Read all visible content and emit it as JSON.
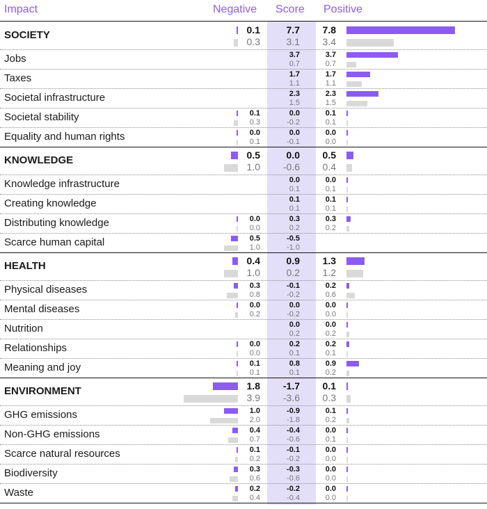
{
  "headers": {
    "impact": "Impact",
    "negative": "Negative",
    "score": "Score",
    "positive": "Positive"
  },
  "chart_data": {
    "type": "table",
    "columns": [
      "Negative",
      "Score",
      "Positive"
    ],
    "series_note": "Each cell shows two values: first (purple bar) and second (grey bar)",
    "rows": [
      {
        "label": "SOCIETY",
        "section": true,
        "neg": [
          "0.1",
          "0.3"
        ],
        "score": [
          "7.7",
          "3.1"
        ],
        "pos": [
          "7.8",
          "3.4"
        ]
      },
      {
        "label": "Jobs",
        "section": false,
        "neg": null,
        "score": [
          "3.7",
          "0.7"
        ],
        "pos": [
          "3.7",
          "0.7"
        ]
      },
      {
        "label": "Taxes",
        "section": false,
        "neg": null,
        "score": [
          "1.7",
          "1.1"
        ],
        "pos": [
          "1.7",
          "1.1"
        ]
      },
      {
        "label": "Societal infrastructure",
        "section": false,
        "neg": null,
        "score": [
          "2.3",
          "1.5"
        ],
        "pos": [
          "2.3",
          "1.5"
        ]
      },
      {
        "label": "Societal stability",
        "section": false,
        "neg": [
          "0.1",
          "0.3"
        ],
        "score": [
          "0.0",
          "-0.2"
        ],
        "pos": [
          "0.1",
          "0.1"
        ]
      },
      {
        "label": "Equality and human rights",
        "section": false,
        "neg": [
          "0.0",
          "0.1"
        ],
        "score": [
          "0.0",
          "-0.1"
        ],
        "pos": [
          "0.0",
          "0.0"
        ]
      },
      {
        "label": "KNOWLEDGE",
        "section": true,
        "neg": [
          "0.5",
          "1.0"
        ],
        "score": [
          "0.0",
          "-0.6"
        ],
        "pos": [
          "0.5",
          "0.4"
        ]
      },
      {
        "label": "Knowledge infrastructure",
        "section": false,
        "neg": null,
        "score": [
          "0.0",
          "0.1"
        ],
        "pos": [
          "0.0",
          "0.1"
        ]
      },
      {
        "label": "Creating knowledge",
        "section": false,
        "neg": null,
        "score": [
          "0.1",
          "0.1"
        ],
        "pos": [
          "0.1",
          "0.1"
        ]
      },
      {
        "label": "Distributing knowledge",
        "section": false,
        "neg": [
          "0.0",
          "0.0"
        ],
        "score": [
          "0.3",
          "0.2"
        ],
        "pos": [
          "0.3",
          "0.2"
        ]
      },
      {
        "label": "Scarce human capital",
        "section": false,
        "neg": [
          "0.5",
          "1.0"
        ],
        "score": [
          "-0.5",
          "-1.0"
        ],
        "pos": null
      },
      {
        "label": "HEALTH",
        "section": true,
        "neg": [
          "0.4",
          "1.0"
        ],
        "score": [
          "0.9",
          "0.2"
        ],
        "pos": [
          "1.3",
          "1.2"
        ]
      },
      {
        "label": "Physical diseases",
        "section": false,
        "neg": [
          "0.3",
          "0.8"
        ],
        "score": [
          "-0.1",
          "-0.2"
        ],
        "pos": [
          "0.2",
          "0.6"
        ]
      },
      {
        "label": "Mental diseases",
        "section": false,
        "neg": [
          "0.0",
          "0.2"
        ],
        "score": [
          "0.0",
          "-0.2"
        ],
        "pos": [
          "0.0",
          "0.0"
        ]
      },
      {
        "label": "Nutrition",
        "section": false,
        "neg": null,
        "score": [
          "0.0",
          "0.2"
        ],
        "pos": [
          "0.0",
          "0.2"
        ]
      },
      {
        "label": "Relationships",
        "section": false,
        "neg": [
          "0.0",
          "0.0"
        ],
        "score": [
          "0.2",
          "0.1"
        ],
        "pos": [
          "0.2",
          "0.1"
        ]
      },
      {
        "label": "Meaning and joy",
        "section": false,
        "neg": [
          "0.1",
          "0.1"
        ],
        "score": [
          "0.8",
          "0.1"
        ],
        "pos": [
          "0.9",
          "0.2"
        ]
      },
      {
        "label": "ENVIRONMENT",
        "section": true,
        "neg": [
          "1.8",
          "3.9"
        ],
        "score": [
          "-1.7",
          "-3.6"
        ],
        "pos": [
          "0.1",
          "0.3"
        ]
      },
      {
        "label": "GHG emissions",
        "section": false,
        "neg": [
          "1.0",
          "2.0"
        ],
        "score": [
          "-0.9",
          "-1.8"
        ],
        "pos": [
          "0.1",
          "0.2"
        ]
      },
      {
        "label": "Non-GHG emissions",
        "section": false,
        "neg": [
          "0.4",
          "0.7"
        ],
        "score": [
          "-0.4",
          "-0.6"
        ],
        "pos": [
          "0.0",
          "0.1"
        ]
      },
      {
        "label": "Scarce natural resources",
        "section": false,
        "neg": [
          "0.1",
          "0.2"
        ],
        "score": [
          "-0.1",
          "-0.2"
        ],
        "pos": [
          "0.0",
          "0.0"
        ]
      },
      {
        "label": "Biodiversity",
        "section": false,
        "neg": [
          "0.3",
          "0.6"
        ],
        "score": [
          "-0.3",
          "-0.6"
        ],
        "pos": [
          "0.0",
          "0.0"
        ]
      },
      {
        "label": "Waste",
        "section": false,
        "neg": [
          "0.2",
          "0.4"
        ],
        "score": [
          "-0.2",
          "-0.4"
        ],
        "pos": [
          "0.0",
          "0.0"
        ]
      }
    ]
  },
  "colors": {
    "current": "#8c5cf0",
    "previous": "#d9d9d9",
    "score_column": "#e4dff9",
    "header_text": "#8c5cf0"
  }
}
